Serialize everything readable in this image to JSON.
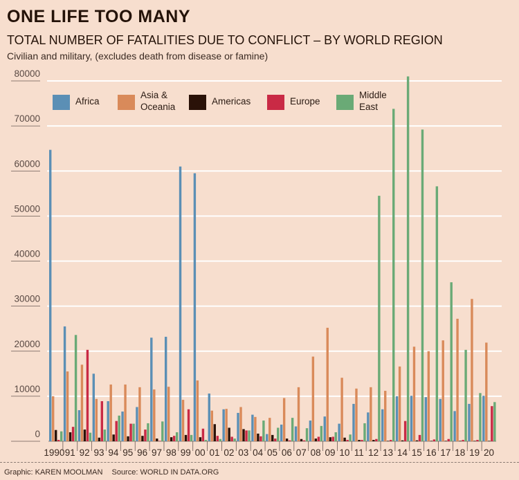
{
  "header": {
    "title": "ONE LIFE TOO MANY",
    "subtitle": "TOTAL NUMBER OF FATALITIES DUE TO CONFLICT – BY WORLD REGION",
    "description": "Civilian and military, (excludes death from disease or famine)"
  },
  "footer": {
    "graphic": "Graphic: KAREN MOOLMAN",
    "source": "Source: WORLD IN DATA.ORG"
  },
  "chart_data": {
    "type": "bar",
    "title": "TOTAL NUMBER OF FATALITIES DUE TO CONFLICT – BY WORLD REGION",
    "subtitle": "Civilian and military, (excludes death from disease or famine)",
    "xlabel": "",
    "ylabel": "",
    "ylim": [
      0,
      80000
    ],
    "yticks": [
      0,
      10000,
      20000,
      30000,
      40000,
      50000,
      60000,
      70000,
      80000
    ],
    "ytick_labels": [
      "0",
      "10000",
      "20000",
      "30000",
      "40000",
      "50000",
      "60000",
      "70000",
      "80000"
    ],
    "grid": true,
    "legend_position": "top",
    "categories": [
      "1990",
      "91",
      "92",
      "93",
      "94",
      "95",
      "96",
      "97",
      "98",
      "99",
      "00",
      "01",
      "02",
      "03",
      "04",
      "05",
      "06",
      "07",
      "08",
      "09",
      "10",
      "11",
      "12",
      "13",
      "14",
      "15",
      "16",
      "17",
      "18",
      "19",
      "20"
    ],
    "series": [
      {
        "name": "Africa",
        "legend_label": [
          "Africa"
        ],
        "color": "#5b8fb5",
        "values": [
          64700,
          25500,
          6900,
          15000,
          8900,
          6600,
          7600,
          23000,
          23200,
          61000,
          59500,
          10600,
          7100,
          6300,
          5900,
          1600,
          3700,
          3300,
          4600,
          5500,
          3900,
          8300,
          6400,
          7100,
          10000,
          10100,
          9800,
          9400,
          6700,
          8300,
          10100
        ]
      },
      {
        "name": "Asia & Oceania",
        "legend_label": [
          "Asia &",
          "Oceania"
        ],
        "color": "#d98a5a",
        "values": [
          10000,
          15500,
          17000,
          9400,
          12600,
          12600,
          12000,
          11500,
          12100,
          9200,
          13500,
          6800,
          7200,
          7600,
          5400,
          5200,
          9600,
          12000,
          18800,
          25200,
          14100,
          11700,
          12000,
          11200,
          16600,
          21000,
          20000,
          22400,
          27200,
          31600,
          21900
        ]
      },
      {
        "name": "Americas",
        "legend_label": [
          "Americas"
        ],
        "color": "#2a1208",
        "values": [
          2500,
          2000,
          2600,
          800,
          1500,
          1100,
          1200,
          600,
          900,
          1400,
          900,
          3800,
          3000,
          2700,
          1700,
          1400,
          600,
          500,
          600,
          900,
          800,
          300,
          300,
          100,
          200,
          200,
          100,
          100,
          100,
          100,
          100
        ]
      },
      {
        "name": "Europe",
        "legend_label": [
          "Europe"
        ],
        "color": "#c92a45",
        "values": [
          300,
          3200,
          20300,
          8900,
          4500,
          3900,
          2600,
          100,
          1200,
          7100,
          2800,
          1200,
          1000,
          2400,
          1100,
          600,
          200,
          200,
          1000,
          1000,
          300,
          300,
          500,
          300,
          4500,
          1400,
          400,
          500,
          300,
          300,
          7800
        ]
      },
      {
        "name": "Middle East",
        "legend_label": [
          "Middle",
          "East"
        ],
        "color": "#6aaa76",
        "values": [
          2200,
          23600,
          1900,
          2600,
          5700,
          3900,
          4000,
          4400,
          2000,
          1400,
          300,
          500,
          600,
          2400,
          4600,
          3000,
          5200,
          2900,
          3400,
          2000,
          1500,
          4000,
          54500,
          73800,
          81000,
          69200,
          56600,
          35300,
          20300,
          10700,
          8700
        ]
      }
    ]
  }
}
